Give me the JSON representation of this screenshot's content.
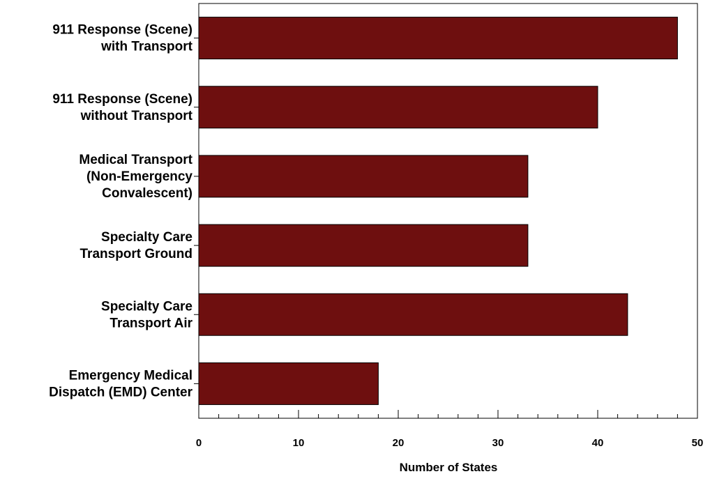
{
  "chart_data": {
    "type": "bar",
    "orientation": "horizontal",
    "categories": [
      [
        "911 Response (Scene)",
        "with Transport"
      ],
      [
        "911 Response (Scene)",
        "without Transport"
      ],
      [
        "Medical Transport",
        "(Non-Emergency",
        "Convalescent)"
      ],
      [
        "Specialty Care",
        "Transport Ground"
      ],
      [
        "Specialty Care",
        "Transport Air"
      ],
      [
        "Emergency Medical",
        "Dispatch (EMD) Center"
      ]
    ],
    "values": [
      48,
      40,
      33,
      33,
      43,
      18
    ],
    "xlabel": "Number of States",
    "ylabel": "",
    "title": "",
    "xlim": [
      0,
      50
    ],
    "x_ticks": [
      0,
      10,
      20,
      30,
      40,
      50
    ],
    "x_tick_labels": [
      "0",
      "10",
      "20",
      "30",
      "40",
      "50"
    ],
    "minor_tick_step": 2,
    "grid": false,
    "legend": "none",
    "bar_color": "#6e0f0f"
  }
}
